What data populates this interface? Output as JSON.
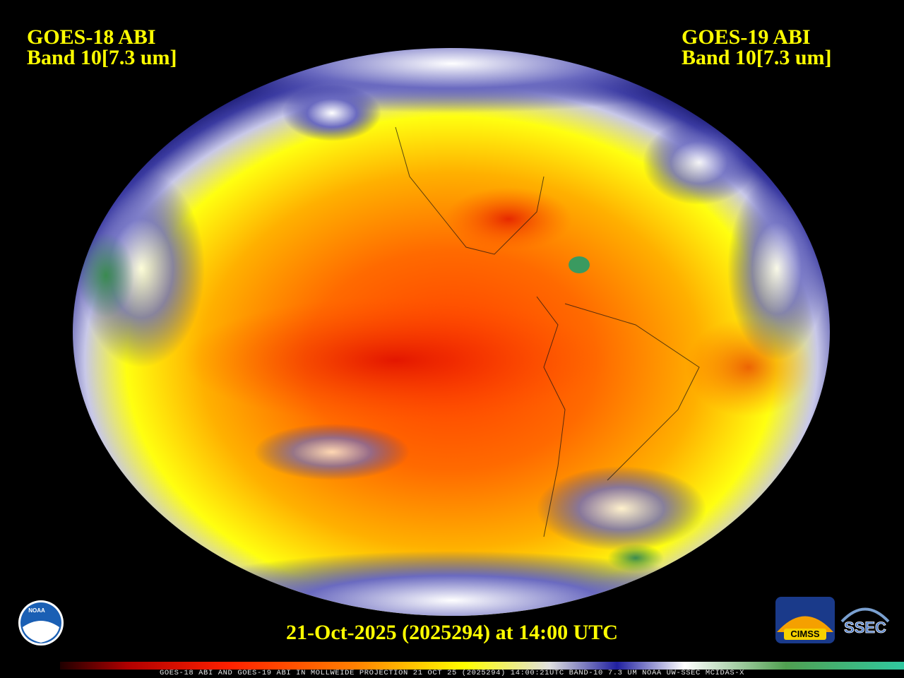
{
  "header": {
    "left_title": "GOES-18 ABI",
    "left_band": "Band 10[7.3 um]",
    "right_title": "GOES-19 ABI",
    "right_band": "Band 10[7.3 um]"
  },
  "timestamp": "21-Oct-2025 (2025294) at 14:00 UTC",
  "colorbar_caption": "GOES-18 ABI AND GOES-19 ABI IN MOLLWEIDE PROJECTION 21 OCT 25 (2025294) 14:00:21UTC BAND-10 7.3 UM NOAA UW-SSEC MCIDAS-X",
  "logos": {
    "noaa": "NOAA",
    "cimss": "CIMSS",
    "ssec": "SSEC"
  }
}
